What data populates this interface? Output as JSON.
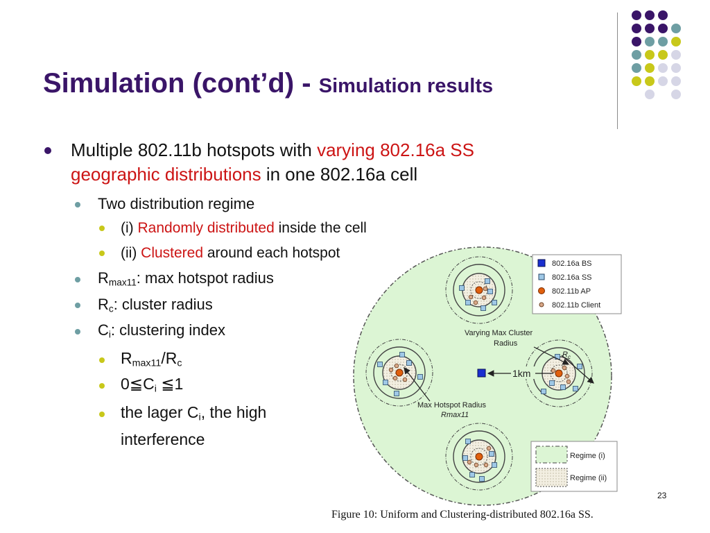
{
  "slide": {
    "title_main": "Simulation (cont’d) - ",
    "title_sub": "Simulation results",
    "page_number": "23"
  },
  "bullets": {
    "b1_line1_a": "Multiple 802.11b hotspots with ",
    "b1_line1_b": "varying 802.16a SS",
    "b1_line2_a": "geographic distributions",
    "b1_line2_b": " in one 802.16a cell",
    "b2": "Two distribution regime",
    "b3_a": "(i)  ",
    "b3_b": "Randomly distributed",
    "b3_c": " inside the cell",
    "b4_a": "(ii) ",
    "b4_b": "Clustered",
    "b4_c": " around each hotspot",
    "b5_main": "R",
    "b5_sub": "max11",
    "b5_rest": ": max hotspot radius",
    "b6_main": "R",
    "b6_sub": "c",
    "b6_rest": ": cluster radius",
    "b7_main": "C",
    "b7_sub": "i",
    "b7_rest": ": clustering index",
    "b8_a": "R",
    "b8_sub1": "max11",
    "b8_b": "/R",
    "b8_sub2": "c",
    "b9_a": "0≦C",
    "b9_sub": "i",
    "b9_b": " ≦1",
    "b10_a": "the lager C",
    "b10_sub": "i",
    "b10_b": ", the high",
    "b10_line2": "interference"
  },
  "figure": {
    "legend": [
      "802.16a BS",
      "802.16a SS",
      "802.11b AP",
      "802.11b Client"
    ],
    "label_varying_line1": "Varying Max Cluster",
    "label_varying_line2": "Radius",
    "label_rc": "R",
    "label_rc_sub": "c",
    "label_1km": "1km",
    "label_max_line1": "Max Hotspot Radius",
    "label_max_line2": "Rmax11",
    "regime_1": "Regime (i)",
    "regime_2": "Regime (ii)",
    "caption": "Figure 10: Uniform and Clustering-distributed 802.16a SS."
  },
  "colors": {
    "title": "#3a1568",
    "highlight": "#cc1414",
    "cell_fill": "#dcf5d4",
    "bs": "#1a2fd0",
    "ss": "#9fc8e6",
    "ap": "#e0600e",
    "client": "#d9a98a"
  }
}
